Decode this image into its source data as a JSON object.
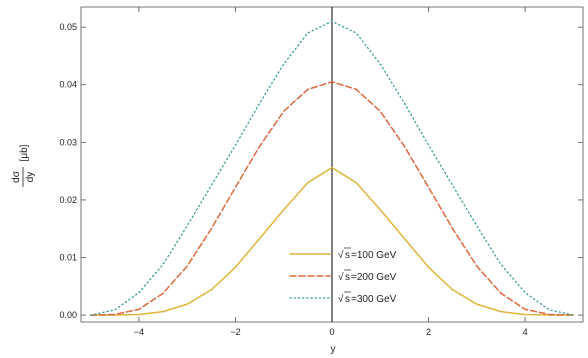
{
  "chart_data": {
    "type": "line",
    "title": "",
    "xlabel": "y",
    "ylabel": {
      "numerator": "dσ",
      "denominator": "dy",
      "unit": "[μb]"
    },
    "xlim": [
      -5.2,
      5.2
    ],
    "ylim": [
      -0.0012,
      0.0535
    ],
    "x_ticks": [
      -4,
      -2,
      0,
      2,
      4
    ],
    "x_tick_labels": [
      "−4",
      "−2",
      "0",
      "2",
      "4"
    ],
    "y_ticks": [
      0.0,
      0.01,
      0.02,
      0.03,
      0.04,
      0.05
    ],
    "y_tick_labels": [
      "0.00",
      "0.01",
      "0.02",
      "0.03",
      "0.04",
      "0.05"
    ],
    "grid": false,
    "legend_position": "bottom-center",
    "x": [
      -5.0,
      -4.5,
      -4.0,
      -3.5,
      -3.0,
      -2.5,
      -2.0,
      -1.5,
      -1.0,
      -0.5,
      0.0,
      0.5,
      1.0,
      1.5,
      2.0,
      2.5,
      3.0,
      3.5,
      4.0,
      4.5,
      5.0
    ],
    "series": [
      {
        "name": "√s =100 GeV",
        "root_symbol": "√",
        "root_arg": "s",
        "label_suffix": "=100 GeV",
        "color": "#E0B43A",
        "dash": "solid",
        "values": [
          0.0,
          0.0,
          0.0001,
          0.0006,
          0.0019,
          0.0044,
          0.0083,
          0.0133,
          0.0183,
          0.023,
          0.0256,
          0.023,
          0.0183,
          0.0133,
          0.0083,
          0.0044,
          0.0019,
          0.0006,
          0.0001,
          0.0,
          0.0
        ]
      },
      {
        "name": "√s =200 GeV",
        "root_symbol": "√",
        "root_arg": "s",
        "label_suffix": "=200 GeV",
        "color": "#DB6A3F",
        "dash": "dashed",
        "values": [
          0.0,
          0.0001,
          0.001,
          0.0038,
          0.0085,
          0.015,
          0.0222,
          0.0293,
          0.0354,
          0.0392,
          0.0405,
          0.0392,
          0.0354,
          0.0293,
          0.0222,
          0.015,
          0.0085,
          0.0038,
          0.001,
          0.0001,
          0.0
        ]
      },
      {
        "name": "√s =300 GeV",
        "root_symbol": "√",
        "root_arg": "s",
        "label_suffix": "=300 GeV",
        "color": "#3A9A9E",
        "dash": "dotted",
        "values": [
          0.0,
          0.0009,
          0.0039,
          0.0088,
          0.0155,
          0.0225,
          0.0295,
          0.0368,
          0.0436,
          0.049,
          0.051,
          0.049,
          0.0436,
          0.0368,
          0.0295,
          0.0225,
          0.0155,
          0.0088,
          0.0039,
          0.0009,
          0.0
        ]
      }
    ]
  }
}
